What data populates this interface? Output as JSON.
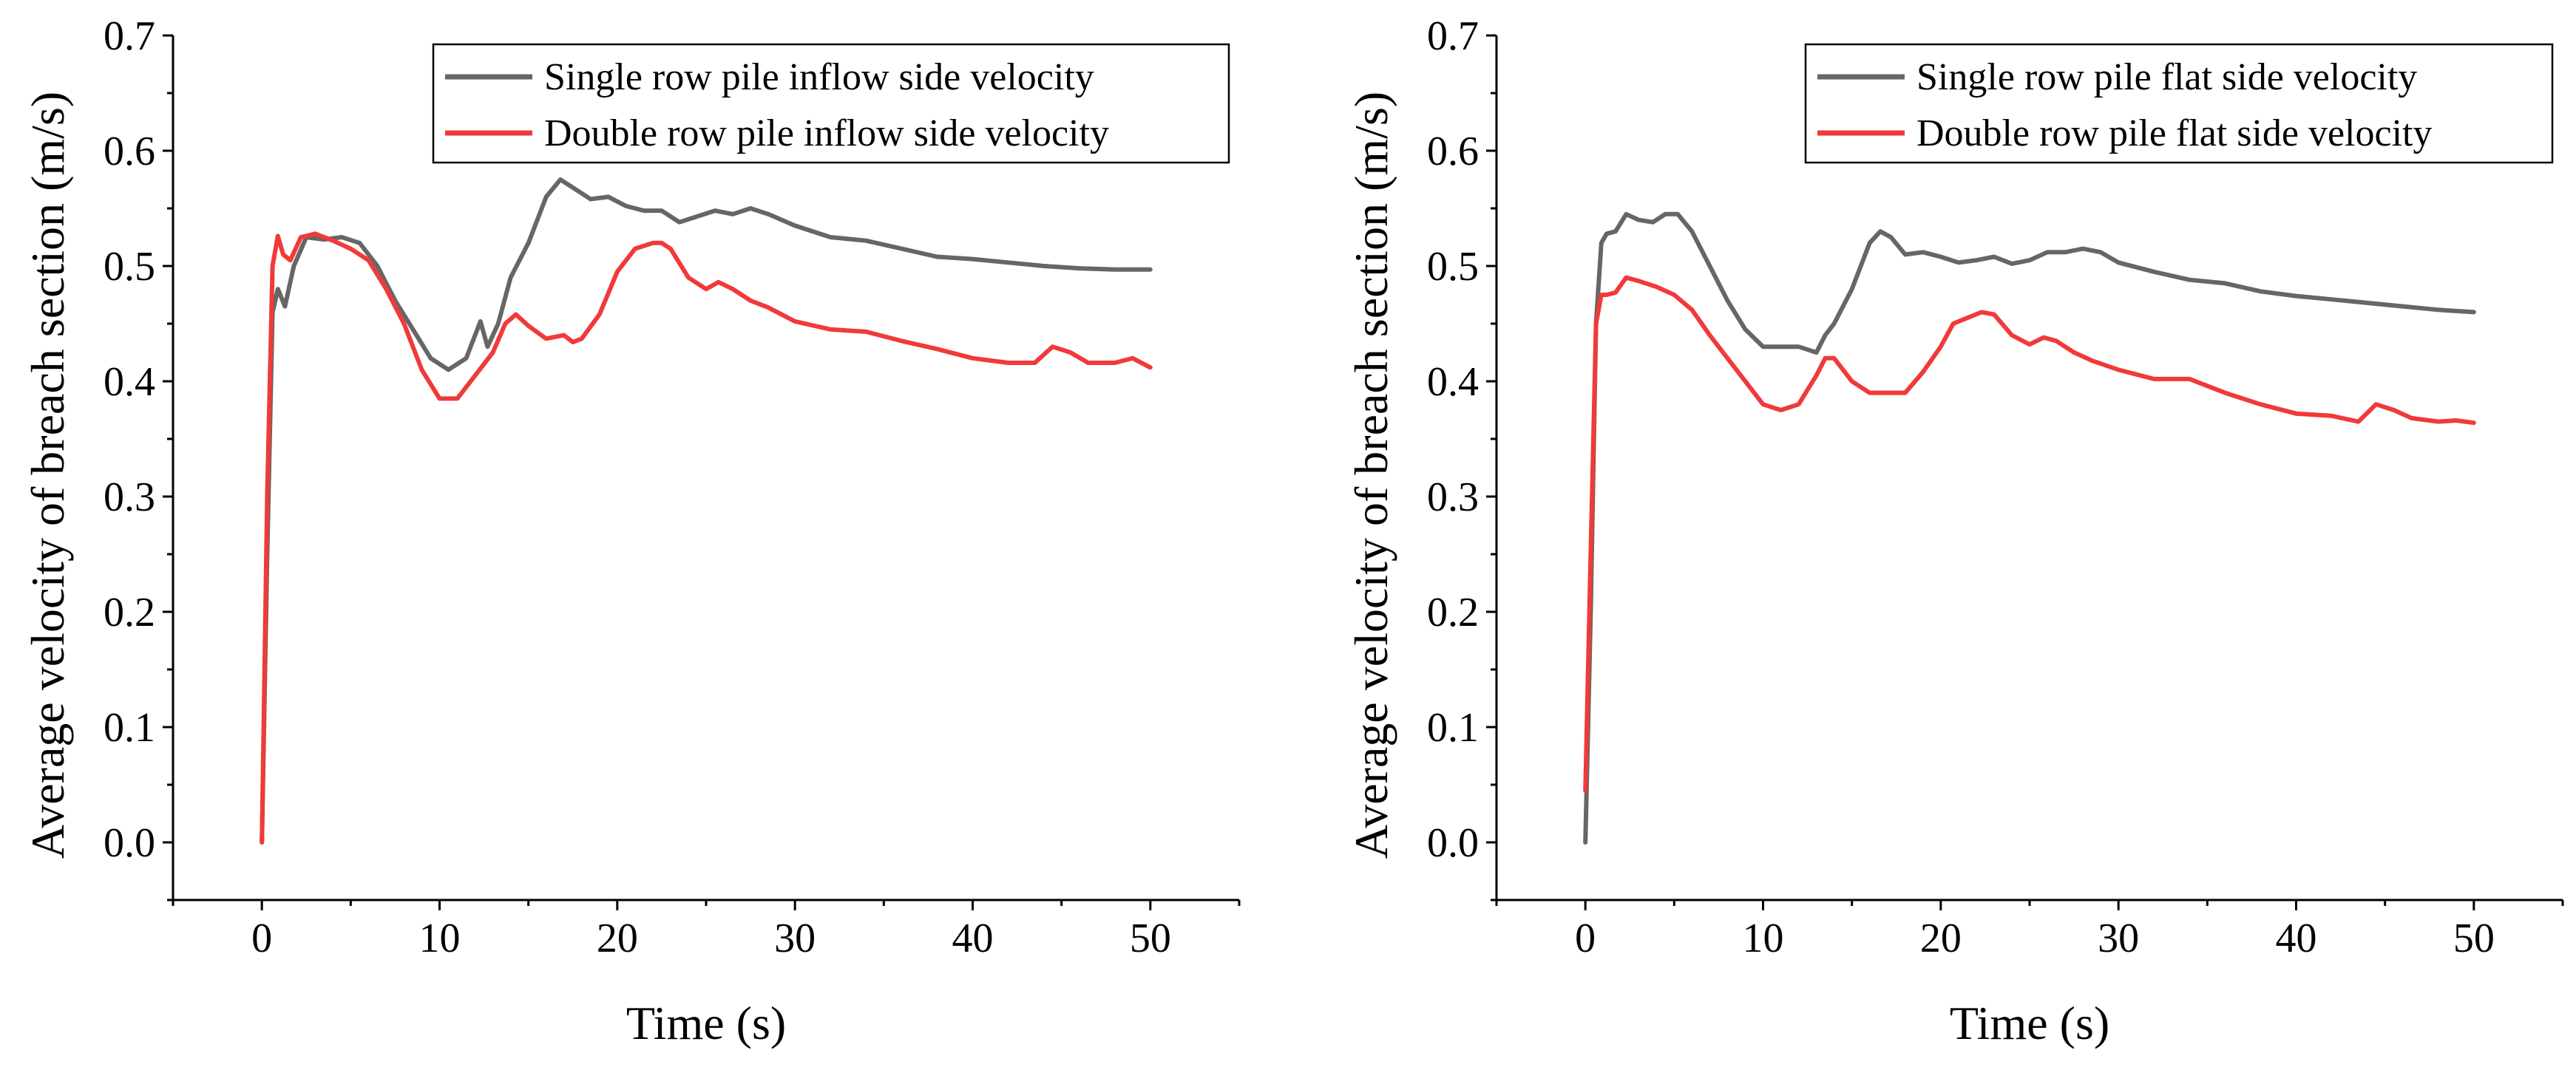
{
  "chart_data": [
    {
      "type": "line",
      "xlabel": "Time (s)",
      "ylabel": "Average velocity of breach section (m/s)",
      "xlim": [
        -5,
        55
      ],
      "ylim": [
        -0.05,
        0.7
      ],
      "xticks": [
        0,
        10,
        20,
        30,
        40,
        50
      ],
      "yticks": [
        0.0,
        0.1,
        0.2,
        0.3,
        0.4,
        0.5,
        0.6,
        0.7
      ],
      "xtick_labels": [
        "0",
        "10",
        "20",
        "30",
        "40",
        "50"
      ],
      "ytick_labels": [
        "0.0",
        "0.1",
        "0.2",
        "0.3",
        "0.4",
        "0.5",
        "0.6",
        "0.7"
      ],
      "legend_position": "top-right",
      "series": [
        {
          "name": "Single row pile inflow side velocity",
          "color": "#666666",
          "x": [
            0,
            0.3,
            0.6,
            0.9,
            1.3,
            1.8,
            2.5,
            3.5,
            4.5,
            5.5,
            6.5,
            7.5,
            8.5,
            9.5,
            10.5,
            11.5,
            12.0,
            12.3,
            12.7,
            13.3,
            14,
            15,
            16,
            16.8,
            17.5,
            18.5,
            19.5,
            20.5,
            21.5,
            22.5,
            23.5,
            24.5,
            25.5,
            26.5,
            27.5,
            28.5,
            30,
            32,
            34,
            36,
            38,
            40,
            42,
            44,
            46,
            48,
            50
          ],
          "y": [
            0.0,
            0.25,
            0.46,
            0.48,
            0.465,
            0.5,
            0.525,
            0.523,
            0.525,
            0.52,
            0.5,
            0.47,
            0.445,
            0.42,
            0.41,
            0.42,
            0.44,
            0.452,
            0.43,
            0.45,
            0.49,
            0.52,
            0.56,
            0.575,
            0.568,
            0.558,
            0.56,
            0.552,
            0.548,
            0.548,
            0.538,
            0.543,
            0.548,
            0.545,
            0.55,
            0.545,
            0.535,
            0.525,
            0.522,
            0.515,
            0.508,
            0.506,
            0.503,
            0.5,
            0.498,
            0.497,
            0.497
          ]
        },
        {
          "name": "Double row pile inflow side velocity",
          "color": "#f03a3a",
          "x": [
            0,
            0.3,
            0.6,
            0.9,
            1.2,
            1.6,
            2.2,
            3,
            4,
            5,
            6,
            7,
            8,
            9,
            10,
            11,
            12,
            13,
            13.7,
            14.3,
            15,
            16,
            17,
            17.5,
            18,
            19,
            20,
            21,
            22,
            22.5,
            23,
            24,
            25,
            25.7,
            26.5,
            27.5,
            28.5,
            30,
            32,
            34,
            36,
            38,
            40,
            42,
            43.5,
            44.5,
            45.5,
            46.5,
            48,
            49,
            50
          ],
          "y": [
            0.0,
            0.3,
            0.5,
            0.526,
            0.51,
            0.505,
            0.525,
            0.528,
            0.522,
            0.515,
            0.505,
            0.48,
            0.45,
            0.41,
            0.385,
            0.385,
            0.405,
            0.425,
            0.45,
            0.458,
            0.448,
            0.437,
            0.44,
            0.434,
            0.437,
            0.458,
            0.495,
            0.515,
            0.52,
            0.52,
            0.515,
            0.49,
            0.48,
            0.486,
            0.48,
            0.47,
            0.464,
            0.452,
            0.445,
            0.443,
            0.435,
            0.428,
            0.42,
            0.416,
            0.416,
            0.43,
            0.425,
            0.416,
            0.416,
            0.42,
            0.412
          ]
        }
      ]
    },
    {
      "type": "line",
      "xlabel": "Time (s)",
      "ylabel": "Average velocity of breach section (m/s)",
      "xlim": [
        -5,
        55
      ],
      "ylim": [
        -0.05,
        0.7
      ],
      "xticks": [
        0,
        10,
        20,
        30,
        40,
        50
      ],
      "yticks": [
        0.0,
        0.1,
        0.2,
        0.3,
        0.4,
        0.5,
        0.6,
        0.7
      ],
      "xtick_labels": [
        "0",
        "10",
        "20",
        "30",
        "40",
        "50"
      ],
      "ytick_labels": [
        "0.0",
        "0.1",
        "0.2",
        "0.3",
        "0.4",
        "0.5",
        "0.6",
        "0.7"
      ],
      "legend_position": "top-right",
      "series": [
        {
          "name": "Single row pile flat side velocity",
          "color": "#666666",
          "x": [
            0,
            0.3,
            0.6,
            0.9,
            1.2,
            1.7,
            2.3,
            3,
            3.8,
            4.5,
            5.2,
            6,
            7,
            8,
            9,
            10,
            11,
            12,
            13,
            13.5,
            14,
            15,
            16,
            16.6,
            17.2,
            18,
            19,
            20,
            21,
            22,
            23,
            24,
            25,
            26,
            27,
            28,
            29,
            30,
            32,
            34,
            36,
            38,
            40,
            42,
            44,
            46,
            48,
            50
          ],
          "y": [
            0.0,
            0.2,
            0.45,
            0.52,
            0.528,
            0.53,
            0.545,
            0.54,
            0.538,
            0.545,
            0.545,
            0.53,
            0.5,
            0.47,
            0.445,
            0.43,
            0.43,
            0.43,
            0.425,
            0.44,
            0.45,
            0.48,
            0.52,
            0.53,
            0.525,
            0.51,
            0.512,
            0.508,
            0.503,
            0.505,
            0.508,
            0.502,
            0.505,
            0.512,
            0.512,
            0.515,
            0.512,
            0.503,
            0.495,
            0.488,
            0.485,
            0.478,
            0.474,
            0.471,
            0.468,
            0.465,
            0.462,
            0.46
          ]
        },
        {
          "name": "Double row pile flat side velocity",
          "color": "#f03a3a",
          "x": [
            0,
            0.3,
            0.6,
            0.9,
            1.2,
            1.7,
            2.3,
            3,
            4,
            5,
            6,
            7,
            8,
            9,
            10,
            11,
            12,
            13,
            13.5,
            14,
            15,
            16,
            17,
            18,
            19,
            20,
            20.7,
            21.5,
            22.3,
            23,
            24,
            25,
            25.8,
            26.5,
            27.5,
            28.5,
            30,
            32,
            34,
            36,
            38,
            40,
            42,
            43.5,
            44.5,
            45.5,
            46.5,
            48,
            49,
            50
          ],
          "y": [
            0.045,
            0.25,
            0.45,
            0.475,
            0.475,
            0.477,
            0.49,
            0.487,
            0.482,
            0.475,
            0.462,
            0.44,
            0.42,
            0.4,
            0.38,
            0.375,
            0.38,
            0.405,
            0.42,
            0.42,
            0.4,
            0.39,
            0.39,
            0.39,
            0.408,
            0.43,
            0.45,
            0.455,
            0.46,
            0.458,
            0.44,
            0.432,
            0.438,
            0.435,
            0.425,
            0.418,
            0.41,
            0.402,
            0.402,
            0.39,
            0.38,
            0.372,
            0.37,
            0.365,
            0.38,
            0.375,
            0.368,
            0.365,
            0.366,
            0.364
          ]
        }
      ]
    }
  ]
}
